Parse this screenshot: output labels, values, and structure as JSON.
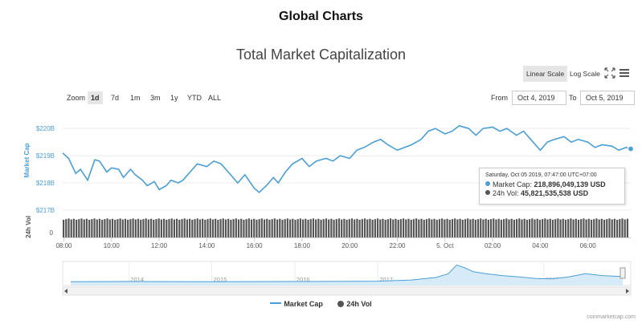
{
  "page": {
    "title": "Global Charts"
  },
  "chart_title": "Total Market Capitalization",
  "controls": {
    "linear_scale": "Linear Scale",
    "log_scale": "Log Scale",
    "zoom_label": "Zoom",
    "zoom_options": [
      "1d",
      "7d",
      "1m",
      "3m",
      "1y",
      "YTD",
      "ALL"
    ],
    "zoom_active": "1d",
    "from_label": "From",
    "from_value": "Oct 4, 2019",
    "to_label": "To",
    "to_value": "Oct 5, 2019",
    "fullscreen_icon": "expand-arrows-icon",
    "menu_icon": "hamburger-menu-icon"
  },
  "tooltip": {
    "date": "Saturday, Oct 05 2019, 07:47:00 UTC+07:00",
    "market_cap_label": "Market Cap:",
    "market_cap_value": "218,896,049,139 USD",
    "vol_label": "24h Vol:",
    "vol_value": "45,821,535,538 USD"
  },
  "legend": {
    "market_cap": "Market Cap",
    "vol": "24h Vol"
  },
  "credits": "coinmarketcap.com",
  "colors": {
    "market_cap": "#4a9fd5",
    "volume": "#555555",
    "navigator_fill": "#d6ebf7"
  },
  "chart_data": {
    "type": "line",
    "y_axis_label": "Market Cap",
    "y_ticks": [
      "$217B",
      "$218B",
      "$219B",
      "$220B"
    ],
    "y_tick_values": [
      217,
      218,
      219,
      220
    ],
    "ylim": [
      217,
      220.3
    ],
    "y_unit": "B USD",
    "x_ticks": [
      "08:00",
      "10:00",
      "12:00",
      "14:00",
      "16:00",
      "18:00",
      "20:00",
      "22:00",
      "5. Oct",
      "02:00",
      "04:00",
      "06:00"
    ],
    "x_tick_hours": [
      8,
      10,
      12,
      14,
      16,
      18,
      20,
      22,
      24,
      26,
      28,
      30
    ],
    "x_range_hours": [
      7.95,
      31.8
    ],
    "market_cap": {
      "name": "Market Cap",
      "x_hours": [
        7.95,
        8.2,
        8.5,
        8.7,
        9.0,
        9.3,
        9.5,
        9.8,
        10.0,
        10.3,
        10.5,
        10.8,
        11.0,
        11.3,
        11.5,
        11.8,
        12.0,
        12.3,
        12.5,
        12.8,
        13.0,
        13.3,
        13.6,
        14.0,
        14.3,
        14.6,
        15.0,
        15.3,
        15.6,
        16.0,
        16.2,
        16.5,
        16.8,
        17.0,
        17.3,
        17.6,
        18.0,
        18.3,
        18.6,
        19.0,
        19.3,
        19.6,
        20.0,
        20.3,
        20.6,
        21.0,
        21.3,
        21.6,
        22.0,
        22.3,
        22.6,
        23.0,
        23.3,
        23.6,
        24.0,
        24.3,
        24.6,
        25.0,
        25.3,
        25.6,
        26.0,
        26.3,
        26.6,
        27.0,
        27.3,
        27.6,
        28.0,
        28.3,
        28.6,
        29.0,
        29.3,
        29.6,
        30.0,
        30.3,
        30.6,
        31.0,
        31.3,
        31.6,
        31.8
      ],
      "values": [
        219.1,
        218.9,
        218.35,
        218.5,
        218.1,
        218.85,
        218.8,
        218.4,
        218.55,
        218.5,
        218.2,
        218.5,
        218.3,
        218.1,
        217.9,
        218.05,
        217.75,
        217.9,
        218.1,
        218.0,
        218.1,
        218.4,
        218.7,
        218.6,
        218.8,
        218.7,
        218.3,
        218.0,
        218.3,
        217.8,
        217.65,
        217.9,
        218.2,
        218.0,
        218.4,
        218.7,
        218.9,
        218.6,
        218.8,
        218.9,
        218.8,
        219.0,
        218.9,
        219.2,
        219.3,
        219.5,
        219.6,
        219.4,
        219.2,
        219.3,
        219.4,
        219.6,
        219.9,
        220.0,
        219.8,
        219.9,
        220.1,
        220.0,
        219.75,
        220.0,
        220.05,
        219.9,
        220.0,
        219.75,
        219.9,
        219.6,
        219.2,
        219.5,
        219.6,
        219.7,
        219.5,
        219.6,
        219.5,
        219.3,
        219.4,
        219.35,
        219.2,
        219.3,
        219.25
      ]
    },
    "volume": {
      "name": "24h Vol",
      "y_tick": "0",
      "y_axis_label": "24h Vol",
      "bars": 220
    },
    "navigator": {
      "years": [
        "2014",
        "2015",
        "2016",
        "2017",
        "2018",
        "2019"
      ],
      "x_years": [
        2013.3,
        2019.95
      ],
      "year_positions": [
        2014,
        2015,
        2016,
        2017,
        2018,
        2019
      ],
      "series": [
        [
          2013.3,
          0.03
        ],
        [
          2014,
          0.04
        ],
        [
          2015,
          0.03
        ],
        [
          2016,
          0.04
        ],
        [
          2017,
          0.06
        ],
        [
          2017.4,
          0.12
        ],
        [
          2017.7,
          0.25
        ],
        [
          2017.85,
          0.45
        ],
        [
          2017.95,
          0.9
        ],
        [
          2018.05,
          0.75
        ],
        [
          2018.15,
          0.55
        ],
        [
          2018.3,
          0.45
        ],
        [
          2018.5,
          0.35
        ],
        [
          2018.7,
          0.28
        ],
        [
          2018.9,
          0.2
        ],
        [
          2019.1,
          0.18
        ],
        [
          2019.3,
          0.28
        ],
        [
          2019.5,
          0.45
        ],
        [
          2019.7,
          0.35
        ],
        [
          2019.95,
          0.3
        ]
      ]
    }
  }
}
